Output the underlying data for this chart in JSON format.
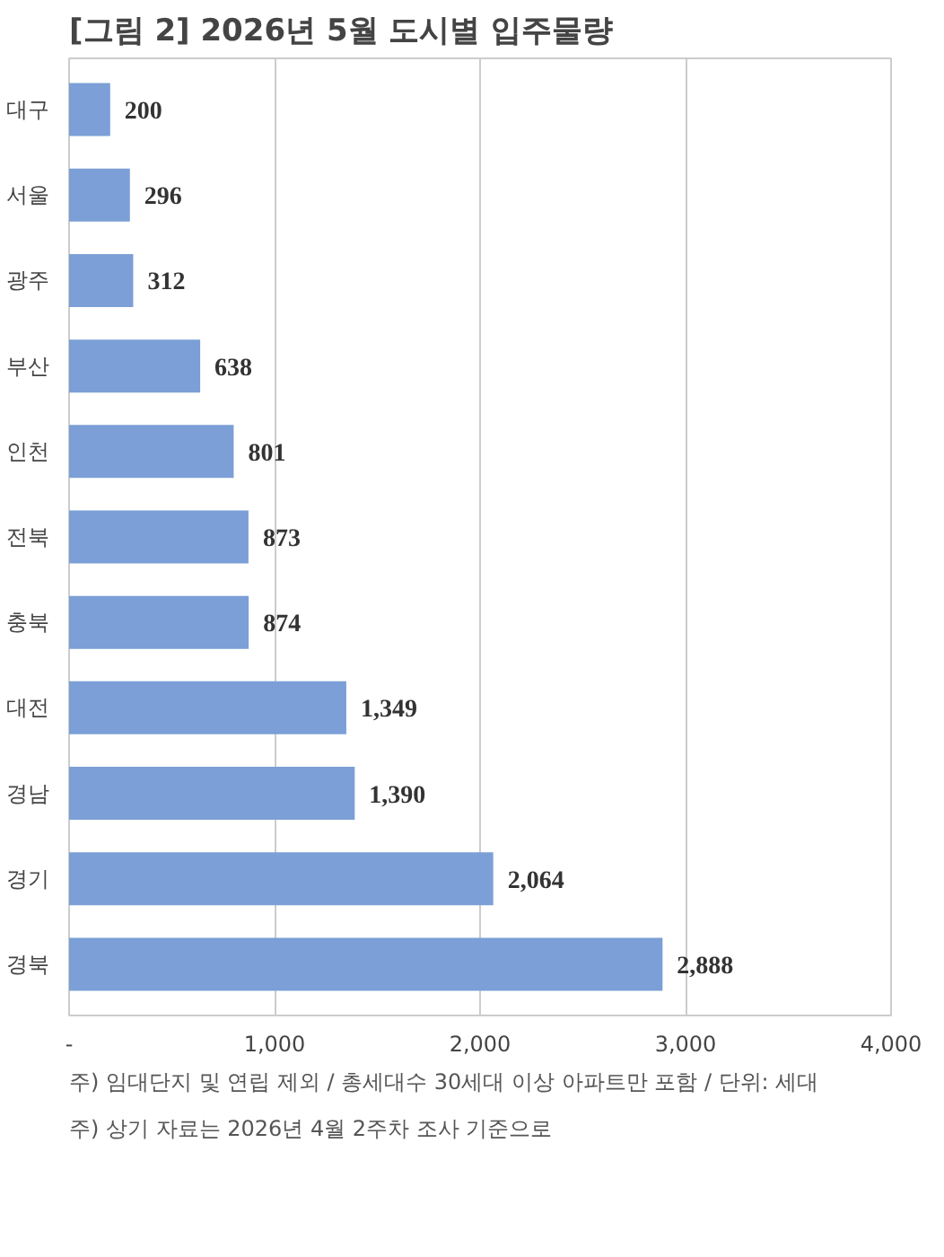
{
  "chart_data": {
    "type": "bar",
    "orientation": "horizontal",
    "title": "[그림 2] 2026년 5월 도시별 입주물량",
    "categories": [
      "대구",
      "서울",
      "광주",
      "부산",
      "인천",
      "전북",
      "충북",
      "대전",
      "경남",
      "경기",
      "경북"
    ],
    "values": [
      200,
      296,
      312,
      638,
      801,
      873,
      874,
      1349,
      1390,
      2064,
      2888
    ],
    "value_labels": [
      "200",
      "296",
      "312",
      "638",
      "801",
      "873",
      "874",
      "1,349",
      "1,390",
      "2,064",
      "2,888"
    ],
    "color": "#7b9fd6",
    "xlim": [
      0,
      4000
    ],
    "xticks": [
      {
        "value": 0,
        "label": "-"
      },
      {
        "value": 1000,
        "label": "1,000"
      },
      {
        "value": 2000,
        "label": "2,000"
      },
      {
        "value": 3000,
        "label": "3,000"
      },
      {
        "value": 4000,
        "label": "4,000"
      }
    ],
    "grid": "x",
    "annotations": [
      "주) 임대단지 및 연립 제외 / 총세대수 30세대 이상 아파트만 포함 / 단위: 세대",
      "주) 상기 자료는 2026년 4월 2주차 조사 기준으로"
    ]
  }
}
